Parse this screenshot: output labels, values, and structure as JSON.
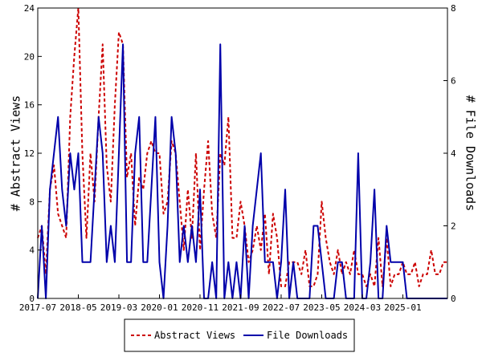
{
  "chart_data": {
    "type": "line",
    "xlabel": "",
    "ylabel_left": "# Abstract Views",
    "ylabel_right": "# File Downloads",
    "ylim_left": [
      0,
      24
    ],
    "ylim_right": [
      0,
      8
    ],
    "yticks_left": [
      "0",
      "4",
      "8",
      "12",
      "16",
      "20",
      "24"
    ],
    "yticks_right": [
      "0",
      "2",
      "4",
      "6",
      "8"
    ],
    "x_tick_labels": [
      "2017-07",
      "2018-05",
      "2019-03",
      "2020-01",
      "2020-11",
      "2021-09",
      "2022-07",
      "2023-05",
      "2024-03",
      "2025-01"
    ],
    "x_start": "2017-07",
    "x_end": "2025-12",
    "grid": false,
    "legend_position": "bottom-center",
    "colors": {
      "abstract_views": "#cc0000",
      "file_downloads": "#0000aa"
    },
    "series": [
      {
        "name": "Abstract Views",
        "axis": "left",
        "style": "dashed",
        "x": [
          "2017-07",
          "2017-08",
          "2017-09",
          "2017-10",
          "2017-11",
          "2017-12",
          "2018-01",
          "2018-02",
          "2018-03",
          "2018-04",
          "2018-05",
          "2018-06",
          "2018-07",
          "2018-08",
          "2018-09",
          "2018-10",
          "2018-11",
          "2018-12",
          "2019-01",
          "2019-02",
          "2019-03",
          "2019-04",
          "2019-05",
          "2019-06",
          "2019-07",
          "2019-08",
          "2019-09",
          "2019-10",
          "2019-11",
          "2019-12",
          "2020-01",
          "2020-02",
          "2020-03",
          "2020-04",
          "2020-05",
          "2020-06",
          "2020-07",
          "2020-08",
          "2020-09",
          "2020-10",
          "2020-11",
          "2020-12",
          "2021-01",
          "2021-02",
          "2021-03",
          "2021-04",
          "2021-05",
          "2021-06",
          "2021-07",
          "2021-08",
          "2021-09",
          "2021-10",
          "2021-11",
          "2021-12",
          "2022-01",
          "2022-02",
          "2022-03",
          "2022-04",
          "2022-05",
          "2022-06",
          "2022-07",
          "2022-08",
          "2022-09",
          "2022-10",
          "2022-11",
          "2022-12",
          "2023-01",
          "2023-02",
          "2023-03",
          "2023-04",
          "2023-05",
          "2023-06",
          "2023-07",
          "2023-08",
          "2023-09",
          "2023-10",
          "2023-11",
          "2023-12",
          "2024-01",
          "2024-02",
          "2024-03",
          "2024-04",
          "2024-05",
          "2024-06",
          "2024-07",
          "2024-08",
          "2024-09",
          "2024-10",
          "2024-11",
          "2024-12",
          "2025-01",
          "2025-02",
          "2025-03",
          "2025-04",
          "2025-05",
          "2025-06",
          "2025-07",
          "2025-08",
          "2025-09",
          "2025-10",
          "2025-11",
          "2025-12"
        ],
        "values": [
          5,
          6,
          2,
          9,
          11,
          7,
          6,
          5,
          15,
          20,
          24,
          12,
          5,
          12,
          8,
          15,
          21,
          11,
          8,
          16,
          22,
          21,
          10,
          12,
          6,
          10,
          9,
          12,
          13,
          12,
          12,
          7,
          8,
          13,
          12,
          8,
          4,
          9,
          5,
          12,
          4,
          9,
          13,
          7,
          5,
          12,
          11,
          15,
          5,
          5,
          8,
          6,
          3,
          4,
          6,
          4,
          7,
          2,
          7,
          5,
          1,
          1,
          3,
          3,
          3,
          2,
          4,
          1,
          1,
          2,
          8,
          5,
          3,
          2,
          4,
          2,
          3,
          2,
          4,
          2,
          2,
          1,
          2,
          1,
          5,
          1,
          5,
          1,
          2,
          2,
          3,
          2,
          2,
          3,
          1,
          2,
          2,
          4,
          2,
          2,
          3,
          3
        ]
      },
      {
        "name": "File Downloads",
        "axis": "right",
        "style": "solid",
        "x": [
          "2017-07",
          "2017-08",
          "2017-09",
          "2017-10",
          "2017-11",
          "2017-12",
          "2018-01",
          "2018-02",
          "2018-03",
          "2018-04",
          "2018-05",
          "2018-06",
          "2018-07",
          "2018-08",
          "2018-09",
          "2018-10",
          "2018-11",
          "2018-12",
          "2019-01",
          "2019-02",
          "2019-03",
          "2019-04",
          "2019-05",
          "2019-06",
          "2019-07",
          "2019-08",
          "2019-09",
          "2019-10",
          "2019-11",
          "2019-12",
          "2020-01",
          "2020-02",
          "2020-03",
          "2020-04",
          "2020-05",
          "2020-06",
          "2020-07",
          "2020-08",
          "2020-09",
          "2020-10",
          "2020-11",
          "2020-12",
          "2021-01",
          "2021-02",
          "2021-03",
          "2021-04",
          "2021-05",
          "2021-06",
          "2021-07",
          "2021-08",
          "2021-09",
          "2021-10",
          "2021-11",
          "2021-12",
          "2022-01",
          "2022-02",
          "2022-03",
          "2022-04",
          "2022-05",
          "2022-06",
          "2022-07",
          "2022-08",
          "2022-09",
          "2022-10",
          "2022-11",
          "2022-12",
          "2023-01",
          "2023-02",
          "2023-03",
          "2023-04",
          "2023-05",
          "2023-06",
          "2023-07",
          "2023-08",
          "2023-09",
          "2023-10",
          "2023-11",
          "2023-12",
          "2024-01",
          "2024-02",
          "2024-03",
          "2024-04",
          "2024-05",
          "2024-06",
          "2024-07",
          "2024-08",
          "2024-09",
          "2024-10",
          "2024-11",
          "2024-12",
          "2025-01",
          "2025-02",
          "2025-03",
          "2025-04",
          "2025-05",
          "2025-06",
          "2025-07",
          "2025-08",
          "2025-09",
          "2025-10",
          "2025-11",
          "2025-12"
        ],
        "values": [
          0,
          2,
          0,
          3,
          4,
          5,
          3,
          2,
          4,
          3,
          4,
          1,
          1,
          1,
          3,
          5,
          4,
          1,
          2,
          1,
          4,
          7,
          1,
          1,
          4,
          5,
          1,
          1,
          3,
          5,
          1,
          0,
          2,
          5,
          4,
          1,
          2,
          1,
          2,
          1,
          3,
          0,
          0,
          1,
          0,
          7,
          0,
          1,
          0,
          1,
          0,
          2,
          0,
          2,
          3,
          4,
          1,
          1,
          1,
          0,
          1,
          3,
          0,
          1,
          0,
          0,
          0,
          0,
          2,
          2,
          1,
          0,
          0,
          0,
          1,
          1,
          0,
          0,
          0,
          4,
          0,
          0,
          1,
          3,
          0,
          0,
          2,
          1,
          1,
          1,
          1,
          0,
          0,
          0,
          0,
          0,
          0,
          0,
          0,
          0,
          0,
          0
        ]
      }
    ]
  }
}
